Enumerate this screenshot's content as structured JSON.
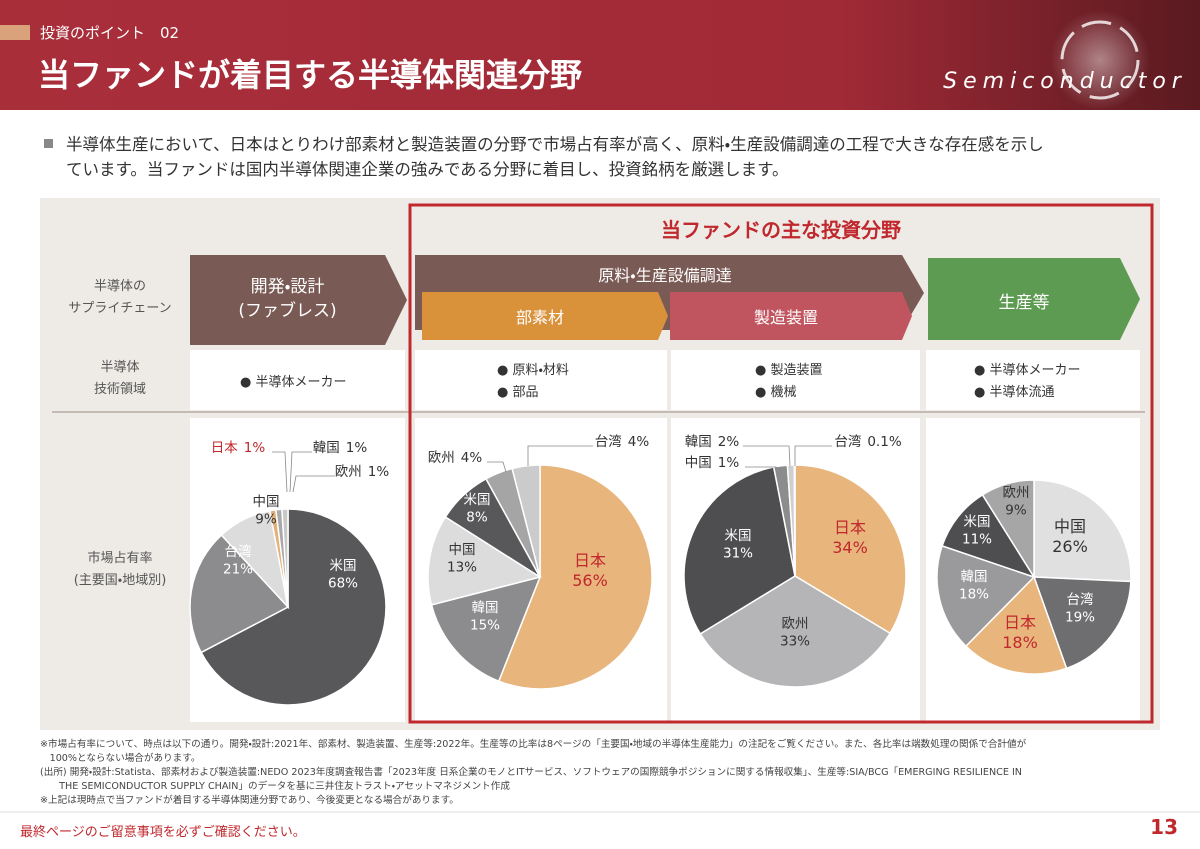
{
  "header": {
    "section": "投資のポイント　02",
    "title": "当ファンドが着目する半導体関連分野",
    "banner": "Semiconductor"
  },
  "intro": {
    "lines": [
      "半導体生産において、日本はとりわけ部素材と製造装置の分野で市場占有率が高く、原料・生産設備調達の工程で大きな存在感を示し",
      "ています。当ファンドは国内半導体関連企業の強みである分野に着目し、投資銘柄を厳選します。"
    ]
  },
  "panel": {
    "highlight_title": "当ファンドの主な投資分野",
    "row_labels": {
      "supply_chain": [
        "半導体の",
        "サプライチェーン"
      ],
      "tech": [
        "半導体",
        "技術領域"
      ],
      "share": [
        "市場占有率",
        "(主要国・地域別)"
      ]
    },
    "stages": {
      "design": [
        "開発・設計",
        "(ファブレス)"
      ],
      "procurement": "原料・生産設備調達",
      "materials": "部素材",
      "equipment": "製造装置",
      "production": "生産等"
    },
    "tech": [
      [
        "● 半導体メーカー"
      ],
      [
        "● 原料・材料",
        "● 部品"
      ],
      [
        "● 製造装置",
        "● 機械"
      ],
      [
        "● 半導体メーカー",
        "● 半導体流通"
      ]
    ]
  },
  "chart_data": [
    {
      "type": "pie",
      "categories": [
        "米国",
        "台湾",
        "中国",
        "日本",
        "韓国",
        "欧州"
      ],
      "values": [
        68,
        21,
        9,
        1,
        1,
        1
      ],
      "value_labels": [
        "68%",
        "21%",
        "9%",
        "1%",
        "1%",
        "1%"
      ],
      "colors": [
        "#58585a",
        "#8c8c8e",
        "#dcdcdc",
        "#e3b07a",
        "#a9a9a9",
        "#c8c8c8"
      ],
      "label_colors": [
        "#ffffff",
        "#ffffff",
        "#333333",
        "#c0282d",
        "#333333",
        "#333333"
      ]
    },
    {
      "type": "pie",
      "categories": [
        "日本",
        "韓国",
        "中国",
        "米国",
        "欧州",
        "台湾"
      ],
      "values": [
        56,
        15,
        13,
        8,
        4,
        4
      ],
      "value_labels": [
        "56%",
        "15%",
        "13%",
        "8%",
        "4%",
        "4%"
      ],
      "colors": [
        "#e8b57d",
        "#8c8c8e",
        "#dcdcdc",
        "#58585a",
        "#a5a5a5",
        "#cbcbcb"
      ],
      "label_colors": [
        "#c0282d",
        "#ffffff",
        "#333333",
        "#ffffff",
        "#333333",
        "#333333"
      ]
    },
    {
      "type": "pie",
      "categories": [
        "日本",
        "欧州",
        "米国",
        "韓国",
        "中国",
        "台湾"
      ],
      "values": [
        34,
        33,
        31,
        2,
        1,
        0.1
      ],
      "value_labels": [
        "34%",
        "33%",
        "31%",
        "2%",
        "1%",
        "0.1%"
      ],
      "colors": [
        "#e8b57d",
        "#b5b5b7",
        "#4e4e50",
        "#8c8c8e",
        "#cfcfcf",
        "#dddddd"
      ],
      "label_colors": [
        "#c0282d",
        "#333333",
        "#ffffff",
        "#333333",
        "#333333",
        "#333333"
      ]
    },
    {
      "type": "pie",
      "categories": [
        "中国",
        "台湾",
        "日本",
        "韓国",
        "米国",
        "欧州"
      ],
      "values": [
        26,
        19,
        18,
        18,
        11,
        9
      ],
      "value_labels": [
        "26%",
        "19%",
        "18%",
        "18%",
        "11%",
        "9%"
      ],
      "colors": [
        "#e0e0e0",
        "#6e6e70",
        "#e8b57d",
        "#9a9a9c",
        "#4e4e50",
        "#a6a6a6"
      ],
      "label_colors": [
        "#333333",
        "#ffffff",
        "#c0282d",
        "#ffffff",
        "#ffffff",
        "#333333"
      ]
    }
  ],
  "footnotes": [
    "※市場占有率について、時点は以下の通り。開発・設計:2021年、部素材、製造装置、生産等:2022年。生産等の比率は8ページの「主要国・地域の半導体生産能力」の注記をご覧ください。また、各比率は端数処理の関係で合計値が",
    "　100%とならない場合があります。",
    "(出所) 開発・設計:Statista、部素材および製造装置:NEDO 2023年度調査報告書「2023年度 日系企業のモノとITサービス、ソフトウェアの国際競争ポジションに関する情報収集」、生産等:SIA/BCG「EMERGING RESILIENCE IN",
    "　　THE SEMICONDUCTOR SUPPLY CHAIN」のデータを基に三井住友トラスト・アセットマネジメント作成",
    "※上記は現時点で当ファンドが着目する半導体関連分野であり、今後変更となる場合があります。"
  ],
  "footer": {
    "notice": "最終ページのご留意事項を必ずご確認ください。",
    "page": "13"
  }
}
